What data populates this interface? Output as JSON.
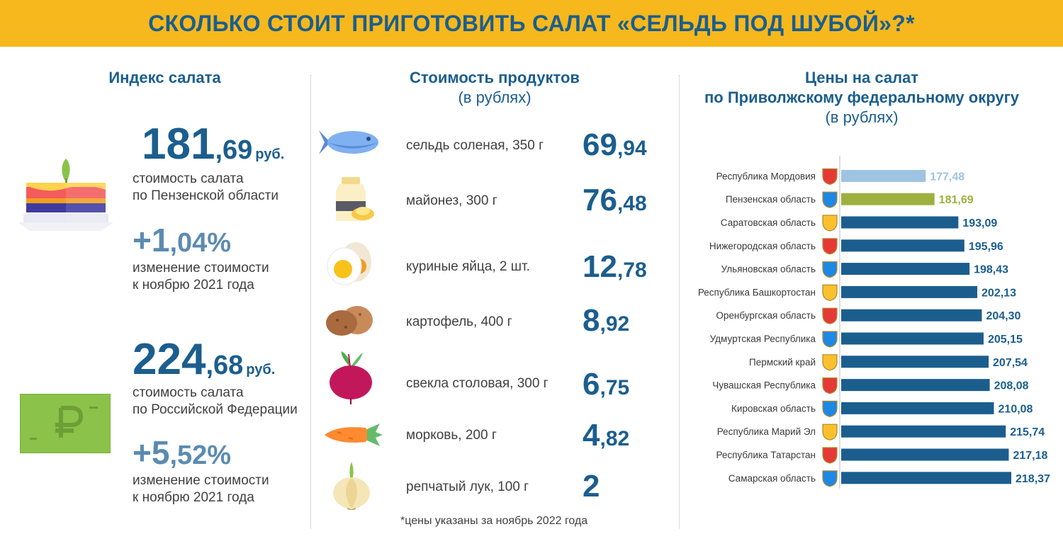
{
  "header": {
    "title": "СКОЛЬКО СТОИТ ПРИГОТОВИТЬ САЛАТ «СЕЛЬДЬ ПОД ШУБОЙ»?*"
  },
  "index": {
    "title": "Индекс салата",
    "penza": {
      "value_int": "181",
      "value_dec": ",69",
      "currency": "руб.",
      "label1": "стоимость салата",
      "label2": "по Пензенской области",
      "change_sign_int": "+1",
      "change_dec": ",04",
      "change_pct": "%",
      "change_label1": "изменение стоимости",
      "change_label2": "к ноябрю 2021 года"
    },
    "russia": {
      "value_int": "224",
      "value_dec": ",68",
      "currency": "руб.",
      "label1": "стоимость салата",
      "label2": "по Российской Федерации",
      "change_sign_int": "+5",
      "change_dec": ",52",
      "change_pct": "%",
      "change_label1": "изменение стоимости",
      "change_label2": "к ноябрю 2021 года"
    }
  },
  "products": {
    "title": "Стоимость продуктов",
    "subtitle": "(в рублях)",
    "items": [
      {
        "name": "сельдь соленая, 350 г",
        "int": "69",
        "dec": ",94",
        "icon": "fish-icon"
      },
      {
        "name": "майонез, 300 г",
        "int": "76",
        "dec": ",48",
        "icon": "mayonnaise-icon"
      },
      {
        "name": "куриные яйца, 2 шт.",
        "int": "12",
        "dec": ",78",
        "icon": "egg-icon"
      },
      {
        "name": "картофель, 400 г",
        "int": "8",
        "dec": ",92",
        "icon": "potato-icon"
      },
      {
        "name": "свекла столовая, 300 г",
        "int": "6",
        "dec": ",75",
        "icon": "beet-icon"
      },
      {
        "name": "морковь, 200 г",
        "int": "4",
        "dec": ",82",
        "icon": "carrot-icon"
      },
      {
        "name": "репчатый лук, 100 г",
        "int": "2",
        "dec": "",
        "icon": "onion-icon"
      }
    ],
    "footnote": "*цены указаны за ноябрь 2022 года"
  },
  "colors": {
    "banner": "#f6b81c",
    "title": "#1b5e8e",
    "bar": "#1b5e8e",
    "bar_light": "#9fc3e3",
    "bar_highlight": "#9eb13f"
  },
  "chart_data": {
    "type": "bar",
    "orientation": "horizontal",
    "title": "Цены на салат",
    "subtitle_line1": "по Приволжскому федеральному округу",
    "subtitle_line2": "(в рублях)",
    "categories": [
      "Республика Мордовия",
      "Пензенская область",
      "Саратовская область",
      "Нижегородская область",
      "Ульяновская область",
      "Республика Башкортостан",
      "Оренбургская область",
      "Удмуртская Республика",
      "Пермский край",
      "Чувашская Республика",
      "Кировская область",
      "Республика Марий Эл",
      "Республика Татарстан",
      "Самарская область"
    ],
    "values": [
      177.48,
      181.69,
      193.09,
      195.96,
      198.43,
      202.13,
      204.3,
      205.15,
      207.54,
      208.08,
      210.08,
      215.74,
      217.18,
      218.37
    ],
    "labels": [
      "177,48",
      "181,69",
      "193,09",
      "195,96",
      "198,43",
      "202,13",
      "204,30",
      "205,15",
      "207,54",
      "208,08",
      "210,08",
      "215,74",
      "217,18",
      "218,37"
    ],
    "bar_colors": [
      "#9fc3e3",
      "#9eb13f",
      "#1b5e8e",
      "#1b5e8e",
      "#1b5e8e",
      "#1b5e8e",
      "#1b5e8e",
      "#1b5e8e",
      "#1b5e8e",
      "#1b5e8e",
      "#1b5e8e",
      "#1b5e8e",
      "#1b5e8e",
      "#1b5e8e"
    ],
    "xlim": [
      0,
      218.37
    ],
    "grid": false,
    "legend": "none"
  }
}
